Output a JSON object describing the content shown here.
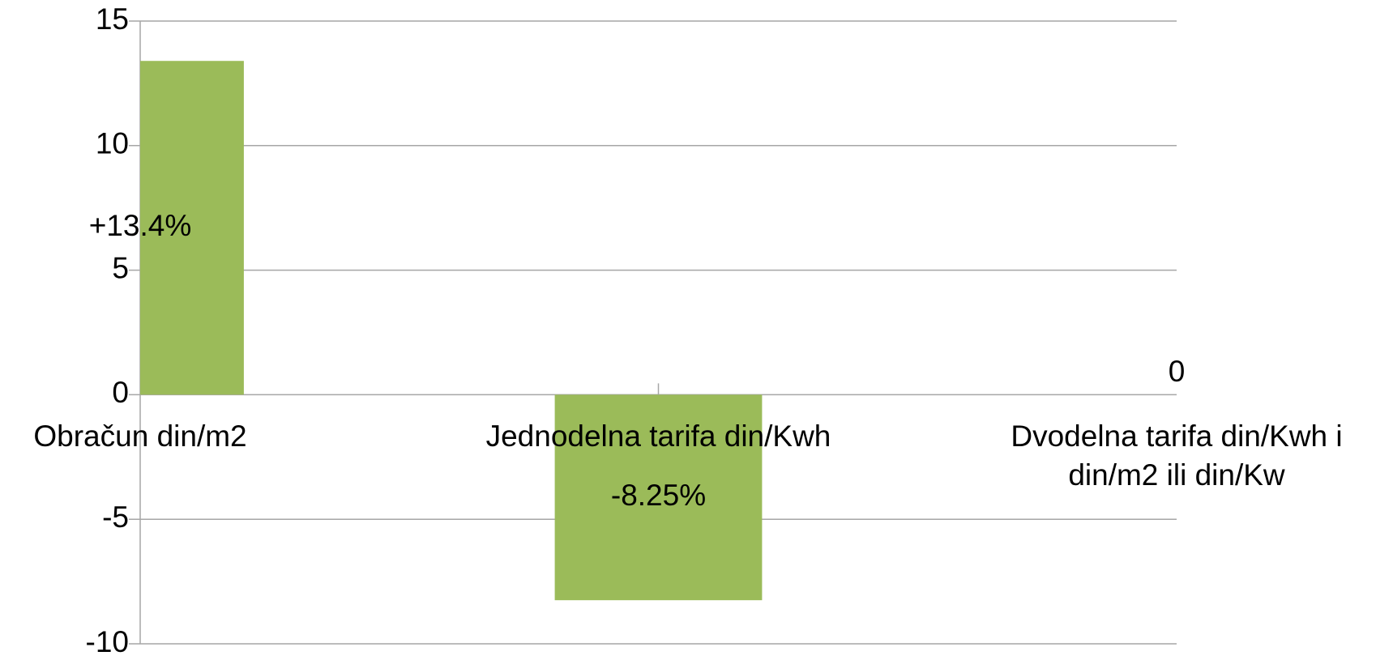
{
  "chart_data": {
    "type": "bar",
    "categories": [
      "Obračun din/m2",
      "Jednodelna tarifa din/Kwh",
      "Dvodelna tarifa din/Kwh i din/m2 ili din/Kw"
    ],
    "values": [
      13.4,
      -8.25,
      0
    ],
    "value_labels": [
      "+13.4%",
      "-8.25%",
      "0"
    ],
    "color": "#9bbb59",
    "ylim": [
      -10,
      15
    ],
    "yticks": [
      -10,
      -5,
      0,
      5,
      10,
      15
    ],
    "grid": true
  }
}
